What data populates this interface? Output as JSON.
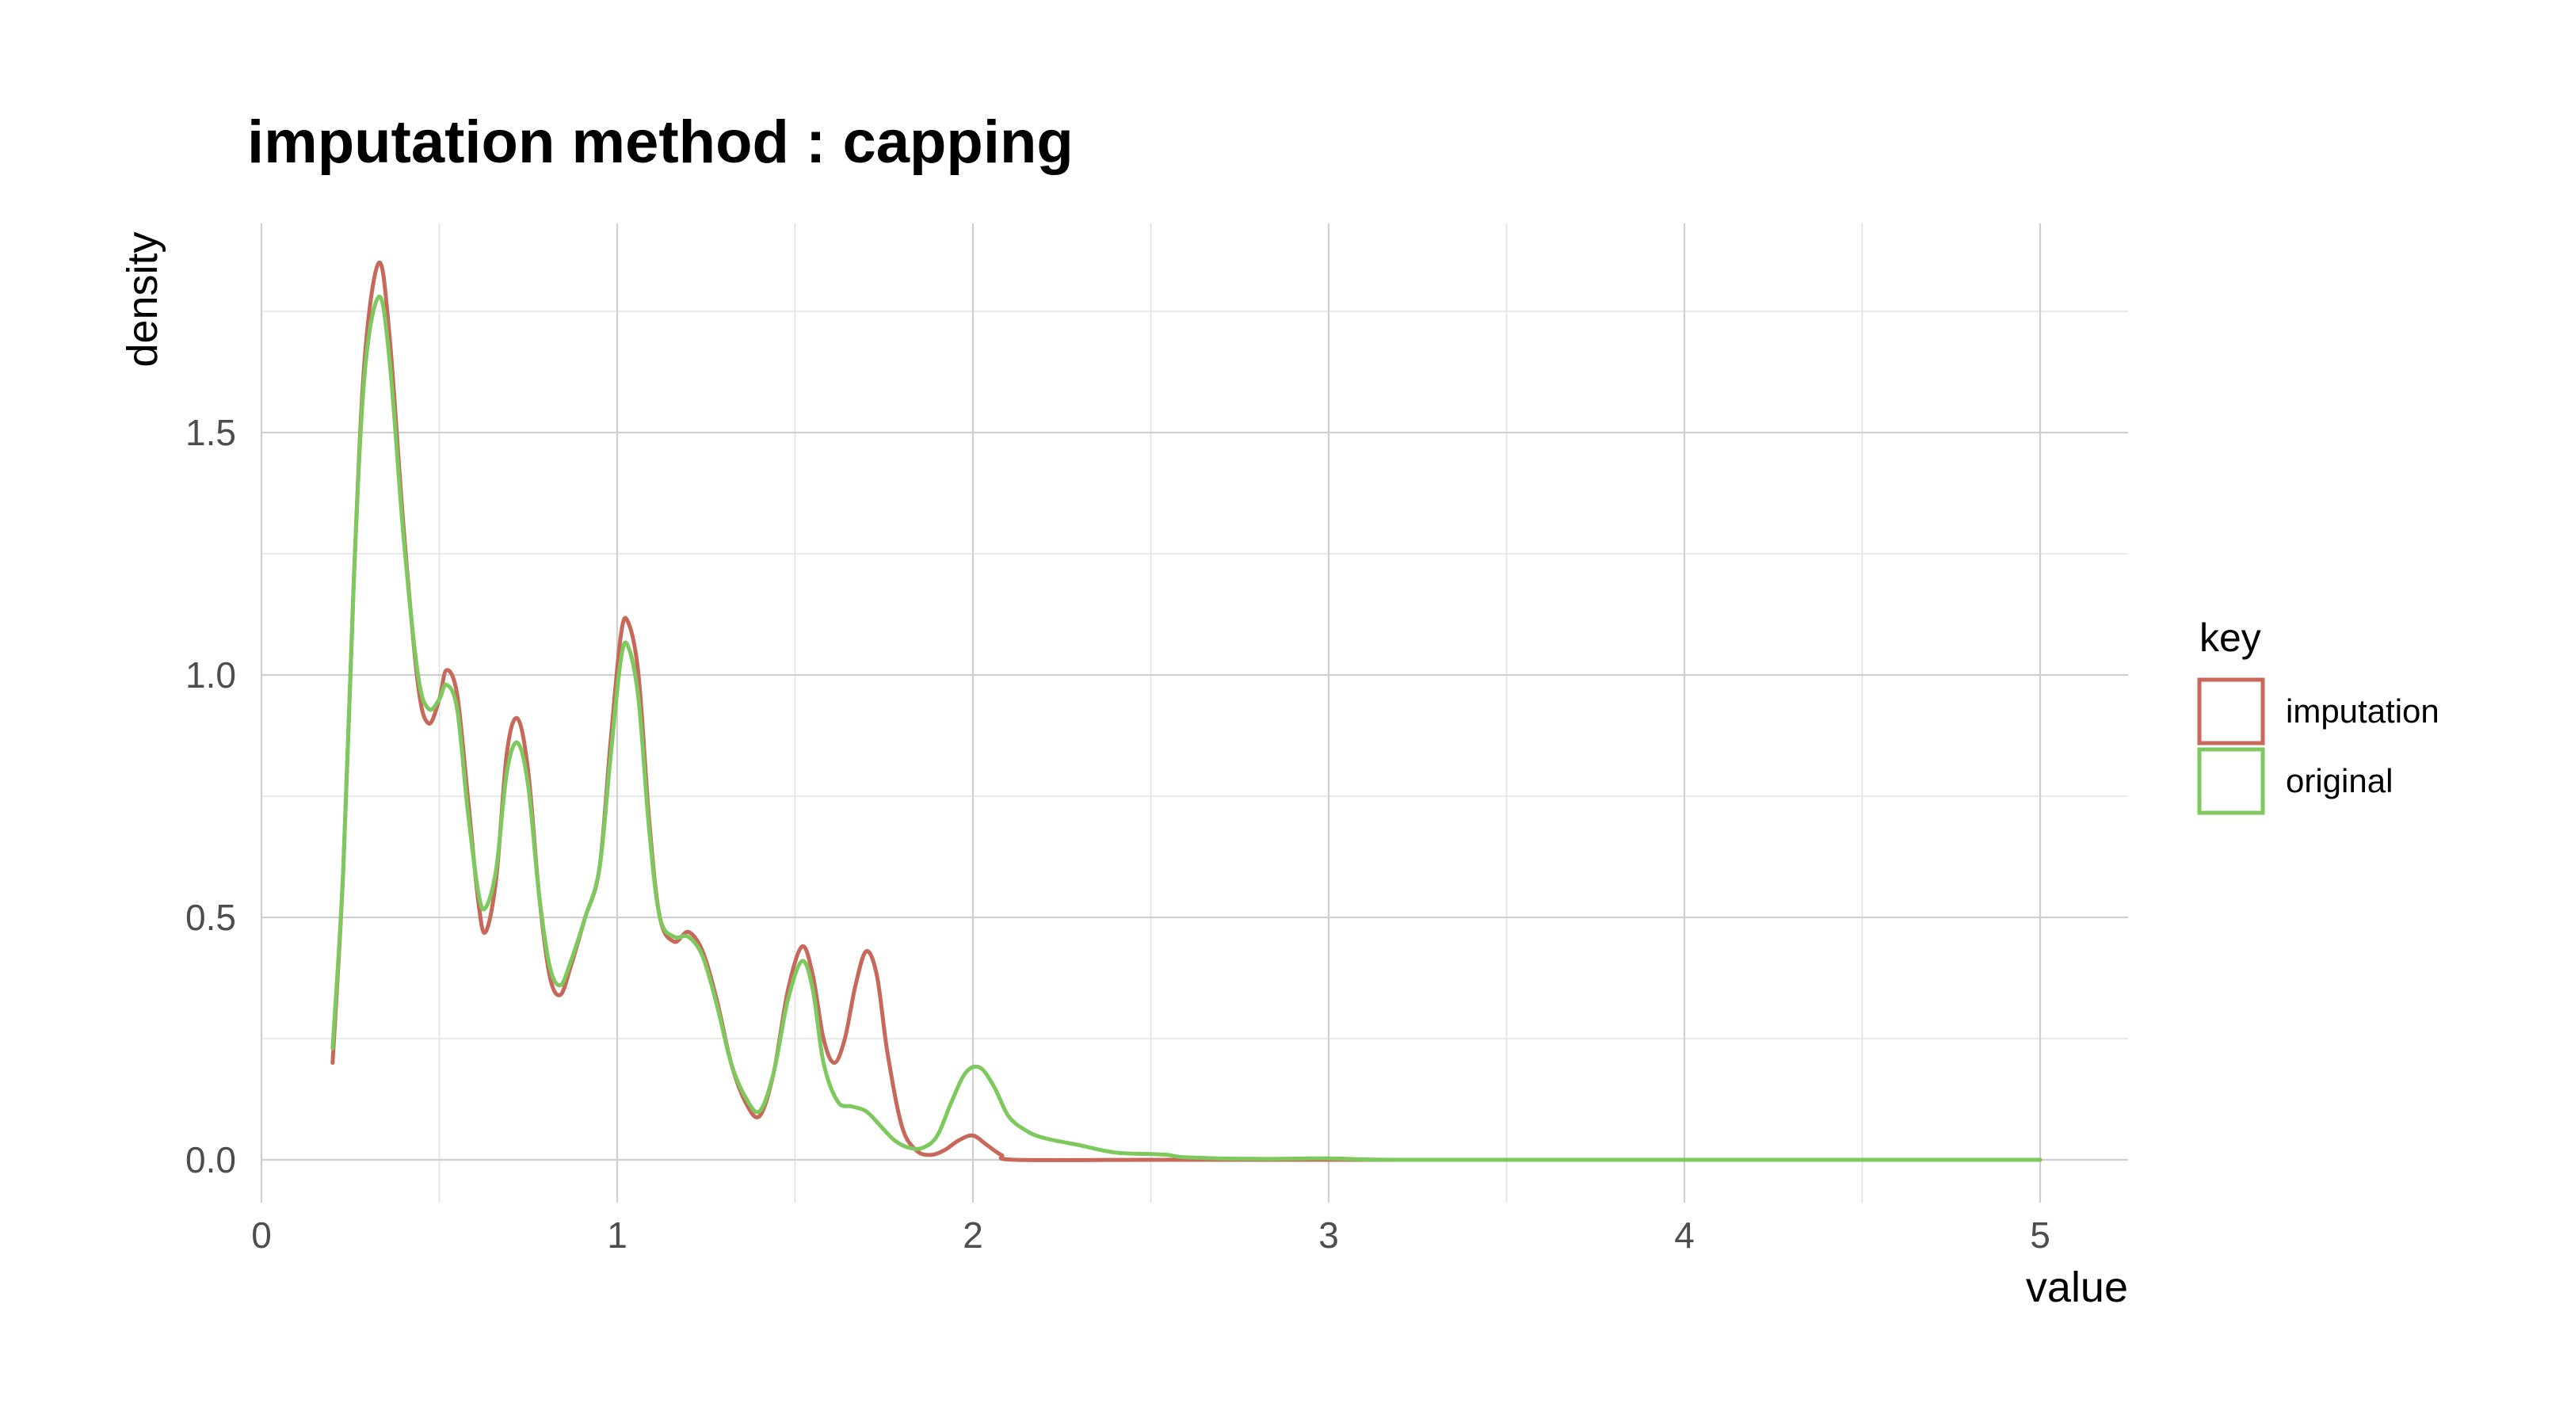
{
  "chart_data": {
    "type": "line",
    "title": "imputation method : capping",
    "xlabel": "value",
    "ylabel": "density",
    "xlim": [
      0,
      5
    ],
    "ylim": [
      0,
      1.85
    ],
    "x_ticks": [
      0,
      1,
      2,
      3,
      4,
      5
    ],
    "x_tick_labels": [
      "0",
      "1",
      "2",
      "3",
      "4",
      "5"
    ],
    "y_ticks": [
      0,
      0.5,
      1.0,
      1.5
    ],
    "y_tick_labels": [
      "0.0",
      "0.5",
      "1.0",
      "1.5"
    ],
    "grid": true,
    "legend": {
      "title": "key",
      "position": "right"
    },
    "series": [
      {
        "name": "imputation",
        "color": "#c8685a",
        "points": [
          [
            0.2,
            0.2
          ],
          [
            0.23,
            0.6
          ],
          [
            0.26,
            1.2
          ],
          [
            0.29,
            1.65
          ],
          [
            0.33,
            1.85
          ],
          [
            0.36,
            1.7
          ],
          [
            0.4,
            1.3
          ],
          [
            0.44,
            0.98
          ],
          [
            0.47,
            0.9
          ],
          [
            0.5,
            0.95
          ],
          [
            0.52,
            1.01
          ],
          [
            0.55,
            0.96
          ],
          [
            0.58,
            0.75
          ],
          [
            0.61,
            0.53
          ],
          [
            0.63,
            0.47
          ],
          [
            0.66,
            0.58
          ],
          [
            0.69,
            0.84
          ],
          [
            0.72,
            0.91
          ],
          [
            0.75,
            0.8
          ],
          [
            0.78,
            0.55
          ],
          [
            0.81,
            0.38
          ],
          [
            0.84,
            0.34
          ],
          [
            0.87,
            0.4
          ],
          [
            0.91,
            0.5
          ],
          [
            0.95,
            0.6
          ],
          [
            0.98,
            0.85
          ],
          [
            1.01,
            1.08
          ],
          [
            1.03,
            1.11
          ],
          [
            1.06,
            1.0
          ],
          [
            1.09,
            0.7
          ],
          [
            1.12,
            0.5
          ],
          [
            1.16,
            0.45
          ],
          [
            1.2,
            0.47
          ],
          [
            1.24,
            0.43
          ],
          [
            1.28,
            0.33
          ],
          [
            1.32,
            0.2
          ],
          [
            1.36,
            0.12
          ],
          [
            1.4,
            0.09
          ],
          [
            1.44,
            0.18
          ],
          [
            1.48,
            0.35
          ],
          [
            1.52,
            0.44
          ],
          [
            1.55,
            0.38
          ],
          [
            1.58,
            0.25
          ],
          [
            1.61,
            0.2
          ],
          [
            1.64,
            0.25
          ],
          [
            1.67,
            0.36
          ],
          [
            1.7,
            0.43
          ],
          [
            1.73,
            0.38
          ],
          [
            1.76,
            0.22
          ],
          [
            1.8,
            0.07
          ],
          [
            1.84,
            0.02
          ],
          [
            1.88,
            0.01
          ],
          [
            1.92,
            0.02
          ],
          [
            1.96,
            0.04
          ],
          [
            2.0,
            0.05
          ],
          [
            2.04,
            0.03
          ],
          [
            2.08,
            0.01
          ],
          [
            2.12,
            0.0
          ],
          [
            2.5,
            0.0
          ],
          [
            3.0,
            0.0
          ],
          [
            4.0,
            0.0
          ],
          [
            5.0,
            0.0
          ]
        ]
      },
      {
        "name": "original",
        "color": "#7dc95e",
        "points": [
          [
            0.2,
            0.23
          ],
          [
            0.23,
            0.6
          ],
          [
            0.26,
            1.2
          ],
          [
            0.29,
            1.62
          ],
          [
            0.33,
            1.78
          ],
          [
            0.36,
            1.65
          ],
          [
            0.4,
            1.28
          ],
          [
            0.44,
            1.0
          ],
          [
            0.47,
            0.93
          ],
          [
            0.5,
            0.95
          ],
          [
            0.52,
            0.98
          ],
          [
            0.55,
            0.93
          ],
          [
            0.58,
            0.72
          ],
          [
            0.61,
            0.55
          ],
          [
            0.63,
            0.52
          ],
          [
            0.66,
            0.6
          ],
          [
            0.69,
            0.8
          ],
          [
            0.72,
            0.86
          ],
          [
            0.75,
            0.77
          ],
          [
            0.78,
            0.55
          ],
          [
            0.81,
            0.4
          ],
          [
            0.84,
            0.36
          ],
          [
            0.87,
            0.41
          ],
          [
            0.91,
            0.5
          ],
          [
            0.95,
            0.6
          ],
          [
            0.98,
            0.82
          ],
          [
            1.01,
            1.03
          ],
          [
            1.03,
            1.06
          ],
          [
            1.06,
            0.95
          ],
          [
            1.09,
            0.68
          ],
          [
            1.12,
            0.5
          ],
          [
            1.16,
            0.46
          ],
          [
            1.2,
            0.46
          ],
          [
            1.24,
            0.42
          ],
          [
            1.28,
            0.32
          ],
          [
            1.32,
            0.2
          ],
          [
            1.36,
            0.13
          ],
          [
            1.4,
            0.1
          ],
          [
            1.44,
            0.18
          ],
          [
            1.48,
            0.33
          ],
          [
            1.52,
            0.41
          ],
          [
            1.55,
            0.35
          ],
          [
            1.58,
            0.2
          ],
          [
            1.62,
            0.12
          ],
          [
            1.66,
            0.11
          ],
          [
            1.7,
            0.1
          ],
          [
            1.74,
            0.07
          ],
          [
            1.78,
            0.04
          ],
          [
            1.82,
            0.025
          ],
          [
            1.86,
            0.025
          ],
          [
            1.9,
            0.05
          ],
          [
            1.94,
            0.12
          ],
          [
            1.98,
            0.18
          ],
          [
            2.02,
            0.19
          ],
          [
            2.06,
            0.15
          ],
          [
            2.1,
            0.09
          ],
          [
            2.15,
            0.06
          ],
          [
            2.2,
            0.045
          ],
          [
            2.3,
            0.03
          ],
          [
            2.4,
            0.015
          ],
          [
            2.5,
            0.012
          ],
          [
            2.55,
            0.01
          ],
          [
            2.6,
            0.005
          ],
          [
            2.8,
            0.002
          ],
          [
            3.0,
            0.003
          ],
          [
            3.2,
            0.0
          ],
          [
            4.0,
            0.0
          ],
          [
            5.0,
            0.0
          ]
        ]
      }
    ]
  }
}
